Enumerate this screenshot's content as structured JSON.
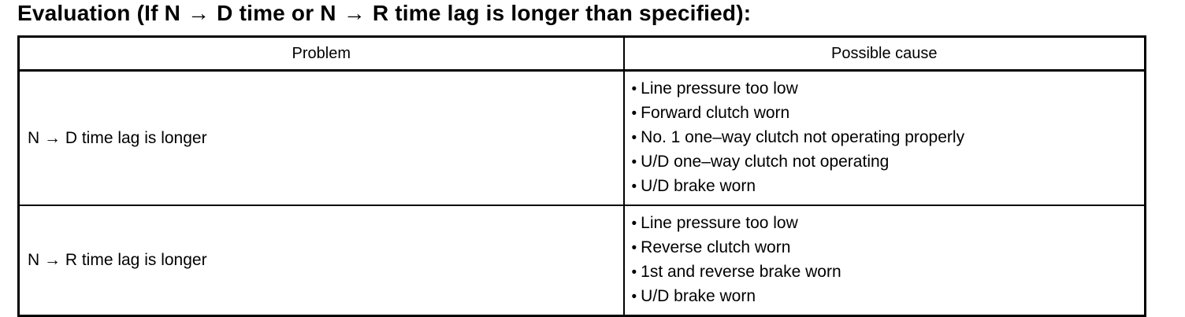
{
  "title": "Evaluation (If N → D time or N → R time lag is longer than specified):",
  "table": {
    "bullet_char": "•",
    "headers": [
      "Problem",
      "Possible cause"
    ],
    "rows": [
      {
        "problem": "N → D time lag is longer",
        "causes": [
          "Line pressure too low",
          "Forward clutch worn",
          "No. 1 one–way clutch not operating properly",
          "U/D one–way clutch not operating",
          "U/D brake worn"
        ]
      },
      {
        "problem": "N → R time lag is longer",
        "causes": [
          "Line pressure too low",
          "Reverse clutch worn",
          "1st and reverse brake worn",
          "U/D brake worn"
        ]
      }
    ]
  },
  "colors": {
    "text": "#000000",
    "border": "#000000",
    "background": "#ffffff"
  }
}
